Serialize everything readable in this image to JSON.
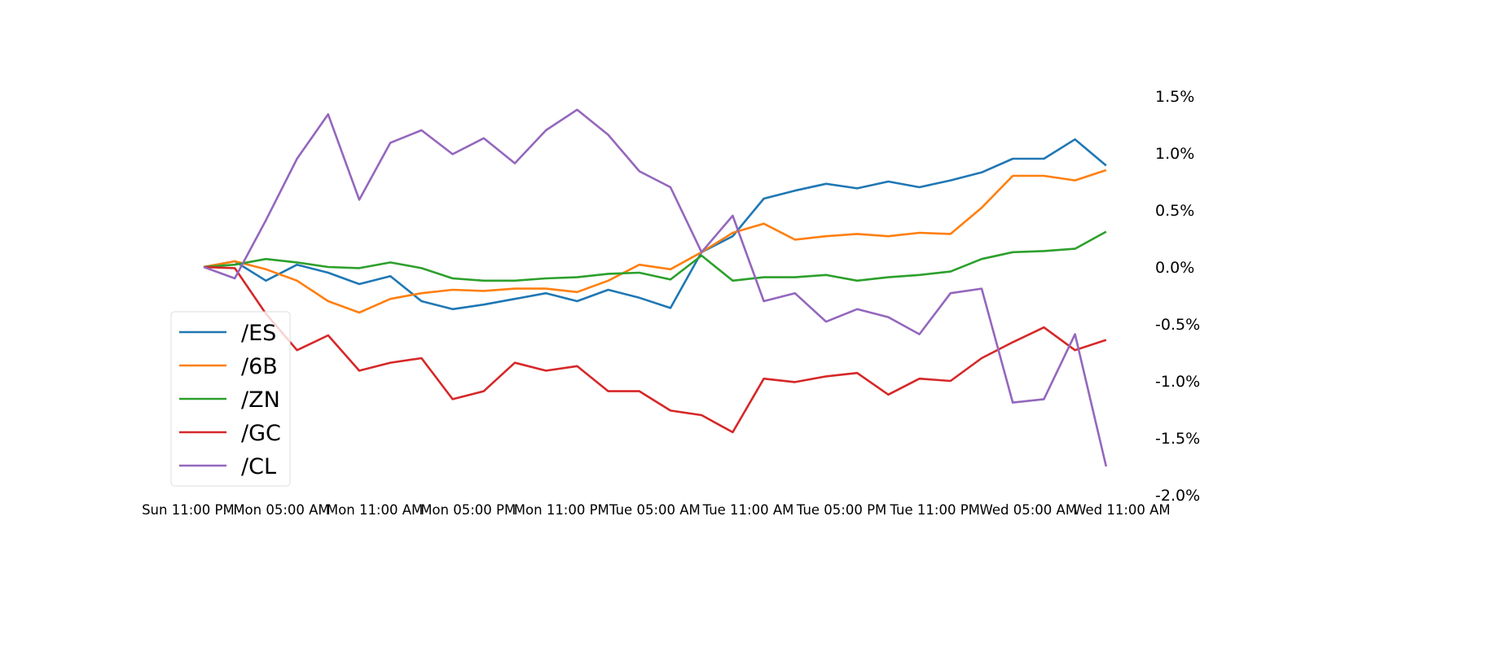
{
  "chart_data": {
    "type": "line",
    "title": "",
    "xlabel": "",
    "ylabel": "",
    "y_axis_position": "right",
    "y_format": "percent",
    "ylim": [
      -2.0,
      1.6
    ],
    "y_ticks": [
      1.5,
      1.0,
      0.5,
      0.0,
      -0.5,
      -1.0,
      -1.5,
      -2.0
    ],
    "y_tick_labels": [
      "1.5%",
      "1.0%",
      "0.5%",
      "0.0%",
      "-0.5%",
      "-1.0%",
      "-1.5%",
      "-2.0%"
    ],
    "x_tick_labels": [
      "Sun 11:00 PM",
      "Mon 05:00 AM",
      "Mon 11:00 AM",
      "Mon 05:00 PM",
      "Mon 11:00 PM",
      "Tue 05:00 AM",
      "Tue 11:00 AM",
      "Tue 05:00 PM",
      "Tue 11:00 PM",
      "Wed 05:00 AM",
      "Wed 11:00 AM"
    ],
    "grid": false,
    "legend_placement": "lower-left",
    "x": [
      "Mon 00:00",
      "Mon 02:00",
      "Mon 04:00",
      "Mon 06:00",
      "Mon 08:00",
      "Mon 10:00",
      "Mon 12:00",
      "Mon 14:00",
      "Mon 16:00",
      "Mon 18:00",
      "Mon 20:00",
      "Mon 22:00",
      "Tue 00:00",
      "Tue 02:00",
      "Tue 04:00",
      "Tue 06:00",
      "Tue 08:00",
      "Tue 10:00",
      "Tue 12:00",
      "Tue 14:00",
      "Tue 16:00",
      "Tue 18:00",
      "Tue 20:00",
      "Tue 22:00",
      "Wed 00:00",
      "Wed 02:00",
      "Wed 04:00",
      "Wed 06:00",
      "Wed 08:00",
      "Wed 10:00"
    ],
    "series": [
      {
        "name": "/ES",
        "color": "#1f77b4",
        "values": [
          0,
          0.05,
          -0.12,
          0.02,
          -0.05,
          -0.15,
          -0.08,
          -0.3,
          -0.37,
          -0.33,
          -0.28,
          -0.23,
          -0.3,
          -0.2,
          -0.27,
          -0.36,
          0.13,
          0.27,
          0.6,
          0.67,
          0.73,
          0.69,
          0.75,
          0.7,
          0.76,
          0.83,
          0.95,
          0.95,
          1.12,
          0.89
        ]
      },
      {
        "name": "/6B",
        "color": "#ff7f0e",
        "values": [
          0,
          0.05,
          -0.02,
          -0.12,
          -0.3,
          -0.4,
          -0.28,
          -0.23,
          -0.2,
          -0.21,
          -0.19,
          -0.19,
          -0.22,
          -0.12,
          0.02,
          -0.02,
          0.13,
          0.3,
          0.38,
          0.24,
          0.27,
          0.29,
          0.27,
          0.3,
          0.29,
          0.52,
          0.8,
          0.8,
          0.76,
          0.85
        ]
      },
      {
        "name": "/ZN",
        "color": "#2ca02c",
        "values": [
          0,
          0.02,
          0.07,
          0.04,
          0,
          -0.01,
          0.04,
          -0.01,
          -0.1,
          -0.12,
          -0.12,
          -0.1,
          -0.09,
          -0.06,
          -0.05,
          -0.11,
          0.1,
          -0.12,
          -0.09,
          -0.09,
          -0.07,
          -0.12,
          -0.09,
          -0.07,
          -0.04,
          0.07,
          0.13,
          0.14,
          0.16,
          0.31
        ]
      },
      {
        "name": "/GC",
        "color": "#d62728",
        "values": [
          0,
          -0.01,
          -0.41,
          -0.73,
          -0.6,
          -0.91,
          -0.84,
          -0.8,
          -1.16,
          -1.09,
          -0.84,
          -0.91,
          -0.87,
          -1.09,
          -1.09,
          -1.26,
          -1.3,
          -1.45,
          -0.98,
          -1.01,
          -0.96,
          -0.93,
          -1.12,
          -0.98,
          -1.0,
          -0.8,
          -0.66,
          -0.53,
          -0.73,
          -0.64
        ]
      },
      {
        "name": "/CL",
        "color": "#9467bd",
        "values": [
          0,
          -0.1,
          0.41,
          0.95,
          1.34,
          0.59,
          1.09,
          1.2,
          0.99,
          1.13,
          0.91,
          1.2,
          1.38,
          1.16,
          0.84,
          0.7,
          0.13,
          0.45,
          -0.3,
          -0.23,
          -0.48,
          -0.37,
          -0.44,
          -0.59,
          -0.23,
          -0.19,
          -1.19,
          -1.16,
          -0.59,
          -1.75
        ]
      }
    ]
  }
}
